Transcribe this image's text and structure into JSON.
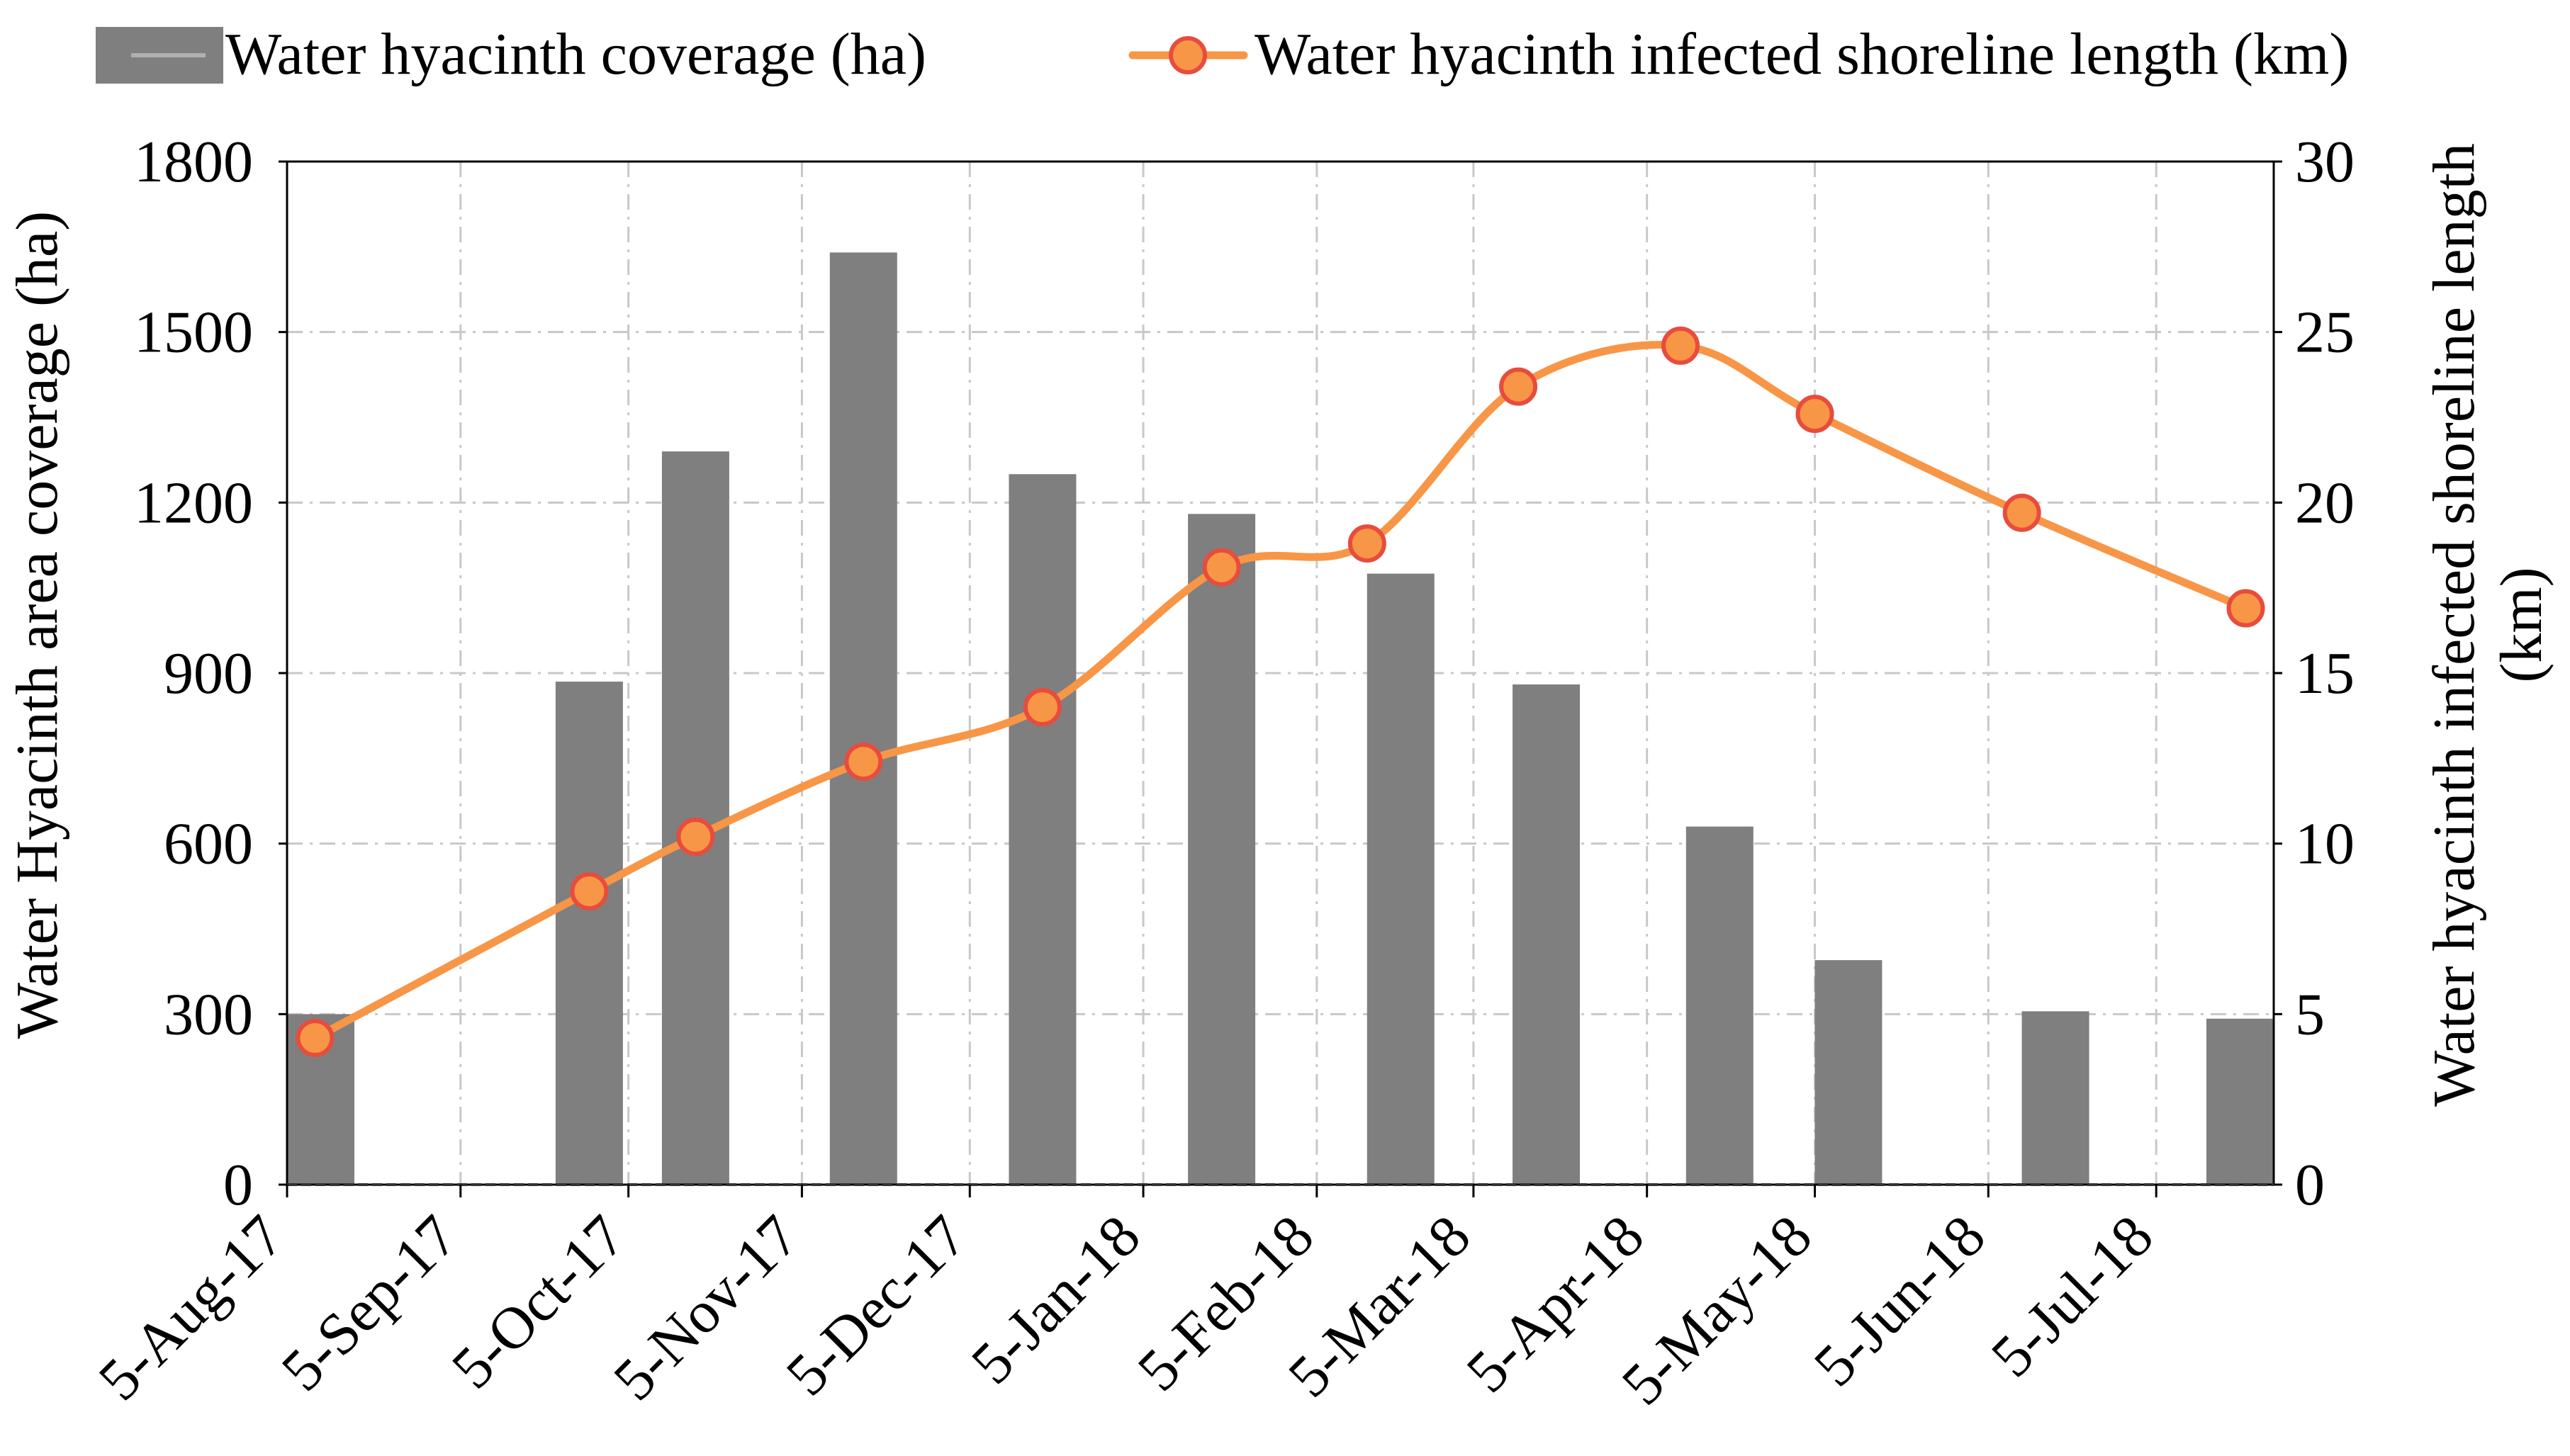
{
  "colors": {
    "bar": "#7f7f7f",
    "line": "#f79646",
    "marker_fill": "#f79646",
    "marker_edge": "#e84c3d",
    "grid": "#c8c8c8",
    "axis": "#000000"
  },
  "chart_data": {
    "type": "bar+line",
    "legend_position": "top",
    "grid": true,
    "x_ticks": [
      "5-Aug-17",
      "5-Sep-17",
      "5-Oct-17",
      "5-Nov-17",
      "5-Dec-17",
      "5-Jan-18",
      "5-Feb-18",
      "5-Mar-18",
      "5-Apr-18",
      "5-May-18",
      "5-Jun-18",
      "5-Jul-18"
    ],
    "x_range": [
      "2017-08-05",
      "2018-07-26"
    ],
    "left_axis": {
      "label": "Water Hyacinth area coverage (ha)",
      "ylim": [
        0,
        1800
      ],
      "ticks": [
        0,
        300,
        600,
        900,
        1200,
        1500,
        1800
      ]
    },
    "right_axis": {
      "label_line1": "Water hyacinth infected shoreline length",
      "label_line2": "(km)",
      "ylim": [
        0,
        30
      ],
      "ticks": [
        0,
        5,
        10,
        15,
        20,
        25,
        30
      ]
    },
    "series": [
      {
        "name": "Water hyacinth coverage (ha)",
        "type": "bar",
        "axis": "left",
        "dates": [
          "2017-08-06",
          "2017-09-28",
          "2017-10-17",
          "2017-11-16",
          "2017-12-18",
          "2018-01-19",
          "2018-02-20",
          "2018-03-18",
          "2018-04-18",
          "2018-05-11",
          "2018-06-17",
          "2018-07-23"
        ],
        "values": [
          300,
          885,
          1290,
          1640,
          1250,
          1180,
          1075,
          880,
          630,
          395,
          305,
          292
        ]
      },
      {
        "name": "Water hyacinth infected shoreline length (km)",
        "type": "line",
        "axis": "right",
        "smooth": true,
        "dates": [
          "2017-08-10",
          "2017-09-28",
          "2017-10-17",
          "2017-11-16",
          "2017-12-18",
          "2018-01-19",
          "2018-02-14",
          "2018-03-13",
          "2018-04-11",
          "2018-05-05",
          "2018-06-11",
          "2018-07-21"
        ],
        "values": [
          4.3,
          8.6,
          10.2,
          12.4,
          14.0,
          18.1,
          18.8,
          23.4,
          24.6,
          22.6,
          19.7,
          16.9
        ]
      }
    ]
  }
}
